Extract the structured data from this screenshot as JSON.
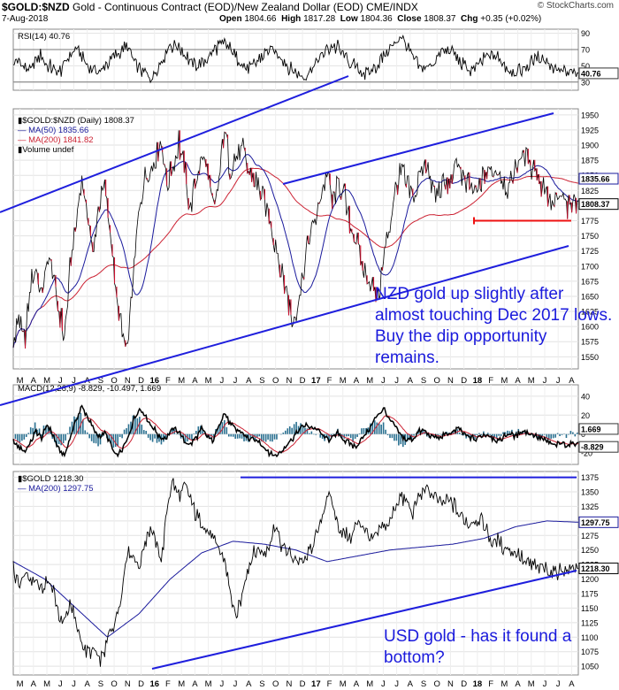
{
  "header": {
    "symbol": "$GOLD:$NZD",
    "description": "Gold - Continuous Contract (EOD)/New Zealand Dollar (EOD)",
    "exchange": "CME/INDX",
    "date": "7-Aug-2018",
    "open_label": "Open",
    "open": "1804.66",
    "high_label": "High",
    "high": "1817.28",
    "low_label": "Low",
    "low": "1804.36",
    "close_label": "Close",
    "close": "1808.37",
    "chg_label": "Chg",
    "chg": "+0.35 (+0.02%)",
    "logo": "© StockCharts.com"
  },
  "colors": {
    "line": "#000000",
    "ma50": "#1a1a9c",
    "ma200": "#cc2233",
    "trend": "#1f1fdd",
    "hist": "#2a7090",
    "support": "#ee1111"
  },
  "annotations": {
    "nzd_note": "NZD gold up slightly after almost touching Dec 2017 lows. Buy the dip opportunity remains.",
    "usd_note": "USD gold - has it found a bottom?"
  },
  "chart_data": [
    {
      "type": "line",
      "panel": "rsi",
      "legend": "RSI(14) 40.76",
      "last_value": 40.76,
      "ylim": [
        20,
        95
      ],
      "yticks": [
        30,
        50,
        70,
        90
      ],
      "reference_lines": [
        30,
        70
      ],
      "shape": [
        52,
        55,
        48,
        44,
        58,
        62,
        50,
        47,
        41,
        55,
        66,
        71,
        60,
        52,
        45,
        42,
        50,
        57,
        63,
        69,
        72,
        60,
        48,
        40,
        35,
        43,
        56,
        70,
        76,
        74,
        65,
        55,
        48,
        52,
        61,
        68,
        74,
        78,
        70,
        60,
        52,
        45,
        50,
        58,
        64,
        70,
        66,
        58,
        50,
        44,
        40,
        36,
        46,
        55,
        62,
        70,
        74,
        72,
        64,
        55,
        48,
        42,
        38,
        45,
        54,
        63,
        70,
        78,
        84,
        74,
        62,
        52,
        46,
        50,
        58,
        65,
        70,
        66,
        58,
        50,
        44,
        48,
        55,
        60,
        64,
        58,
        52,
        46,
        40,
        44,
        50,
        56,
        62,
        58,
        52,
        46,
        42,
        40,
        44,
        40.76
      ]
    },
    {
      "type": "line",
      "panel": "gold_nzd",
      "legend": [
        {
          "name": "$GOLD:$NZD (Daily) 1808.37"
        },
        {
          "name": "MA(50) 1835.66"
        },
        {
          "name": "MA(200) 1841.82"
        },
        {
          "name": "Volume undef"
        }
      ],
      "last_value": 1808.37,
      "ma50_last": 1835.66,
      "ma200_last": 1841.82,
      "ylim": [
        1530,
        1960
      ],
      "yticks": [
        1550,
        1575,
        1600,
        1625,
        1650,
        1675,
        1700,
        1725,
        1750,
        1775,
        1800,
        1825,
        1850,
        1875,
        1900,
        1925,
        1950
      ],
      "support_level": 1775,
      "series": [
        {
          "name": "$GOLD:$NZD",
          "y": [
            1560,
            1620,
            1570,
            1665,
            1695,
            1645,
            1715,
            1680,
            1625,
            1580,
            1700,
            1770,
            1840,
            1785,
            1715,
            1805,
            1835,
            1760,
            1650,
            1590,
            1560,
            1680,
            1790,
            1840,
            1855,
            1885,
            1900,
            1830,
            1870,
            1905,
            1855,
            1795,
            1835,
            1880,
            1860,
            1790,
            1830,
            1930,
            1860,
            1880,
            1900,
            1855,
            1845,
            1830,
            1800,
            1775,
            1735,
            1690,
            1650,
            1610,
            1640,
            1700,
            1750,
            1780,
            1820,
            1850,
            1800,
            1840,
            1815,
            1770,
            1745,
            1700,
            1680,
            1660,
            1655,
            1720,
            1775,
            1825,
            1860,
            1830,
            1810,
            1840,
            1880,
            1845,
            1815,
            1830,
            1830,
            1850,
            1875,
            1840,
            1830,
            1815,
            1840,
            1855,
            1850,
            1865,
            1835,
            1830,
            1860,
            1885,
            1875,
            1865,
            1840,
            1830,
            1810,
            1800,
            1815,
            1790,
            1800,
            1808.37
          ]
        }
      ]
    },
    {
      "type": "line",
      "panel": "macd",
      "legend": "MACD(12,26,9) -8.829, -10.497, 1.669",
      "macd_last": -8.829,
      "signal_last": -10.497,
      "histogram_last": 1.669,
      "ylim": [
        -32,
        52
      ],
      "yticks": [
        -20,
        0,
        20,
        40
      ],
      "shape": [
        -8,
        -14,
        -18,
        -9,
        3,
        -4,
        11,
        -2,
        -16,
        -22,
        -3,
        14,
        30,
        18,
        6,
        -3,
        2,
        -10,
        -24,
        -18,
        -5,
        14,
        26,
        22,
        10,
        3,
        -6,
        -2,
        6,
        3,
        -8,
        -12,
        -4,
        6,
        -3,
        -8,
        10,
        22,
        10,
        4,
        2,
        -4,
        -6,
        -8,
        -14,
        -20,
        -24,
        -18,
        -10,
        -4,
        4,
        10,
        8,
        6,
        0,
        -6,
        -3,
        2,
        -6,
        -10,
        -14,
        -6,
        2,
        12,
        22,
        26,
        14,
        6,
        -2,
        -6,
        -4,
        2,
        4,
        -2,
        -4,
        -3,
        0,
        2,
        6,
        0,
        -3,
        -6,
        -2,
        0,
        -4,
        -8,
        -2,
        0,
        -3,
        4,
        2,
        0,
        -4,
        -6,
        -10,
        -13,
        -9,
        -11,
        -10,
        -8.829
      ],
      "tick_labels": [
        "M",
        "A",
        "M",
        "J",
        "J",
        "A",
        "S",
        "O",
        "N",
        "D",
        "16",
        "F",
        "M",
        "A",
        "M",
        "J",
        "J",
        "A",
        "S",
        "O",
        "N",
        "D",
        "17",
        "F",
        "M",
        "A",
        "M",
        "J",
        "J",
        "A",
        "S",
        "O",
        "N",
        "D",
        "18",
        "F",
        "M",
        "A",
        "M",
        "J",
        "J",
        "A"
      ]
    },
    {
      "type": "line",
      "panel": "gold_usd",
      "legend": [
        {
          "name": "$GOLD 1218.30"
        },
        {
          "name": "MA(200) 1297.75"
        }
      ],
      "last_value": 1218.3,
      "ma200_last": 1297.75,
      "ylim": [
        1035,
        1385
      ],
      "yticks": [
        1050,
        1075,
        1100,
        1125,
        1150,
        1175,
        1200,
        1225,
        1250,
        1275,
        1300,
        1325,
        1350,
        1375
      ],
      "resistance_level": 1375,
      "series": [
        {
          "name": "$GOLD",
          "y": [
            1215,
            1185,
            1210,
            1200,
            1195,
            1175,
            1200,
            1190,
            1130,
            1130,
            1160,
            1120,
            1090,
            1070,
            1080,
            1060,
            1075,
            1110,
            1130,
            1175,
            1250,
            1240,
            1220,
            1260,
            1290,
            1260,
            1230,
            1330,
            1370,
            1345,
            1360,
            1340,
            1310,
            1300,
            1280,
            1270,
            1250,
            1240,
            1180,
            1130,
            1170,
            1215,
            1240,
            1250,
            1240,
            1270,
            1290,
            1260,
            1250,
            1240,
            1230,
            1225,
            1250,
            1270,
            1300,
            1350,
            1325,
            1290,
            1280,
            1270,
            1290,
            1300,
            1280,
            1270,
            1280,
            1290,
            1300,
            1330,
            1340,
            1330,
            1310,
            1340,
            1355,
            1350,
            1340,
            1325,
            1335,
            1330,
            1315,
            1300,
            1295,
            1305,
            1300,
            1280,
            1260,
            1265,
            1255,
            1250,
            1245,
            1235,
            1225,
            1222,
            1220,
            1216,
            1214,
            1212,
            1215,
            1218,
            1220,
            1218.3
          ]
        },
        {
          "name": "MA(200)",
          "y": [
            1230,
            1200,
            1150,
            1100,
            1140,
            1200,
            1245,
            1265,
            1260,
            1250,
            1230,
            1240,
            1250,
            1255,
            1260,
            1270,
            1290,
            1300,
            1297.75
          ]
        }
      ],
      "tick_labels": [
        "M",
        "A",
        "M",
        "J",
        "J",
        "A",
        "S",
        "O",
        "N",
        "D",
        "16",
        "F",
        "M",
        "A",
        "M",
        "J",
        "J",
        "A",
        "S",
        "O",
        "N",
        "D",
        "17",
        "F",
        "M",
        "A",
        "M",
        "J",
        "J",
        "A",
        "S",
        "O",
        "N",
        "D",
        "18",
        "F",
        "M",
        "A",
        "M",
        "J",
        "J",
        "A"
      ]
    }
  ]
}
